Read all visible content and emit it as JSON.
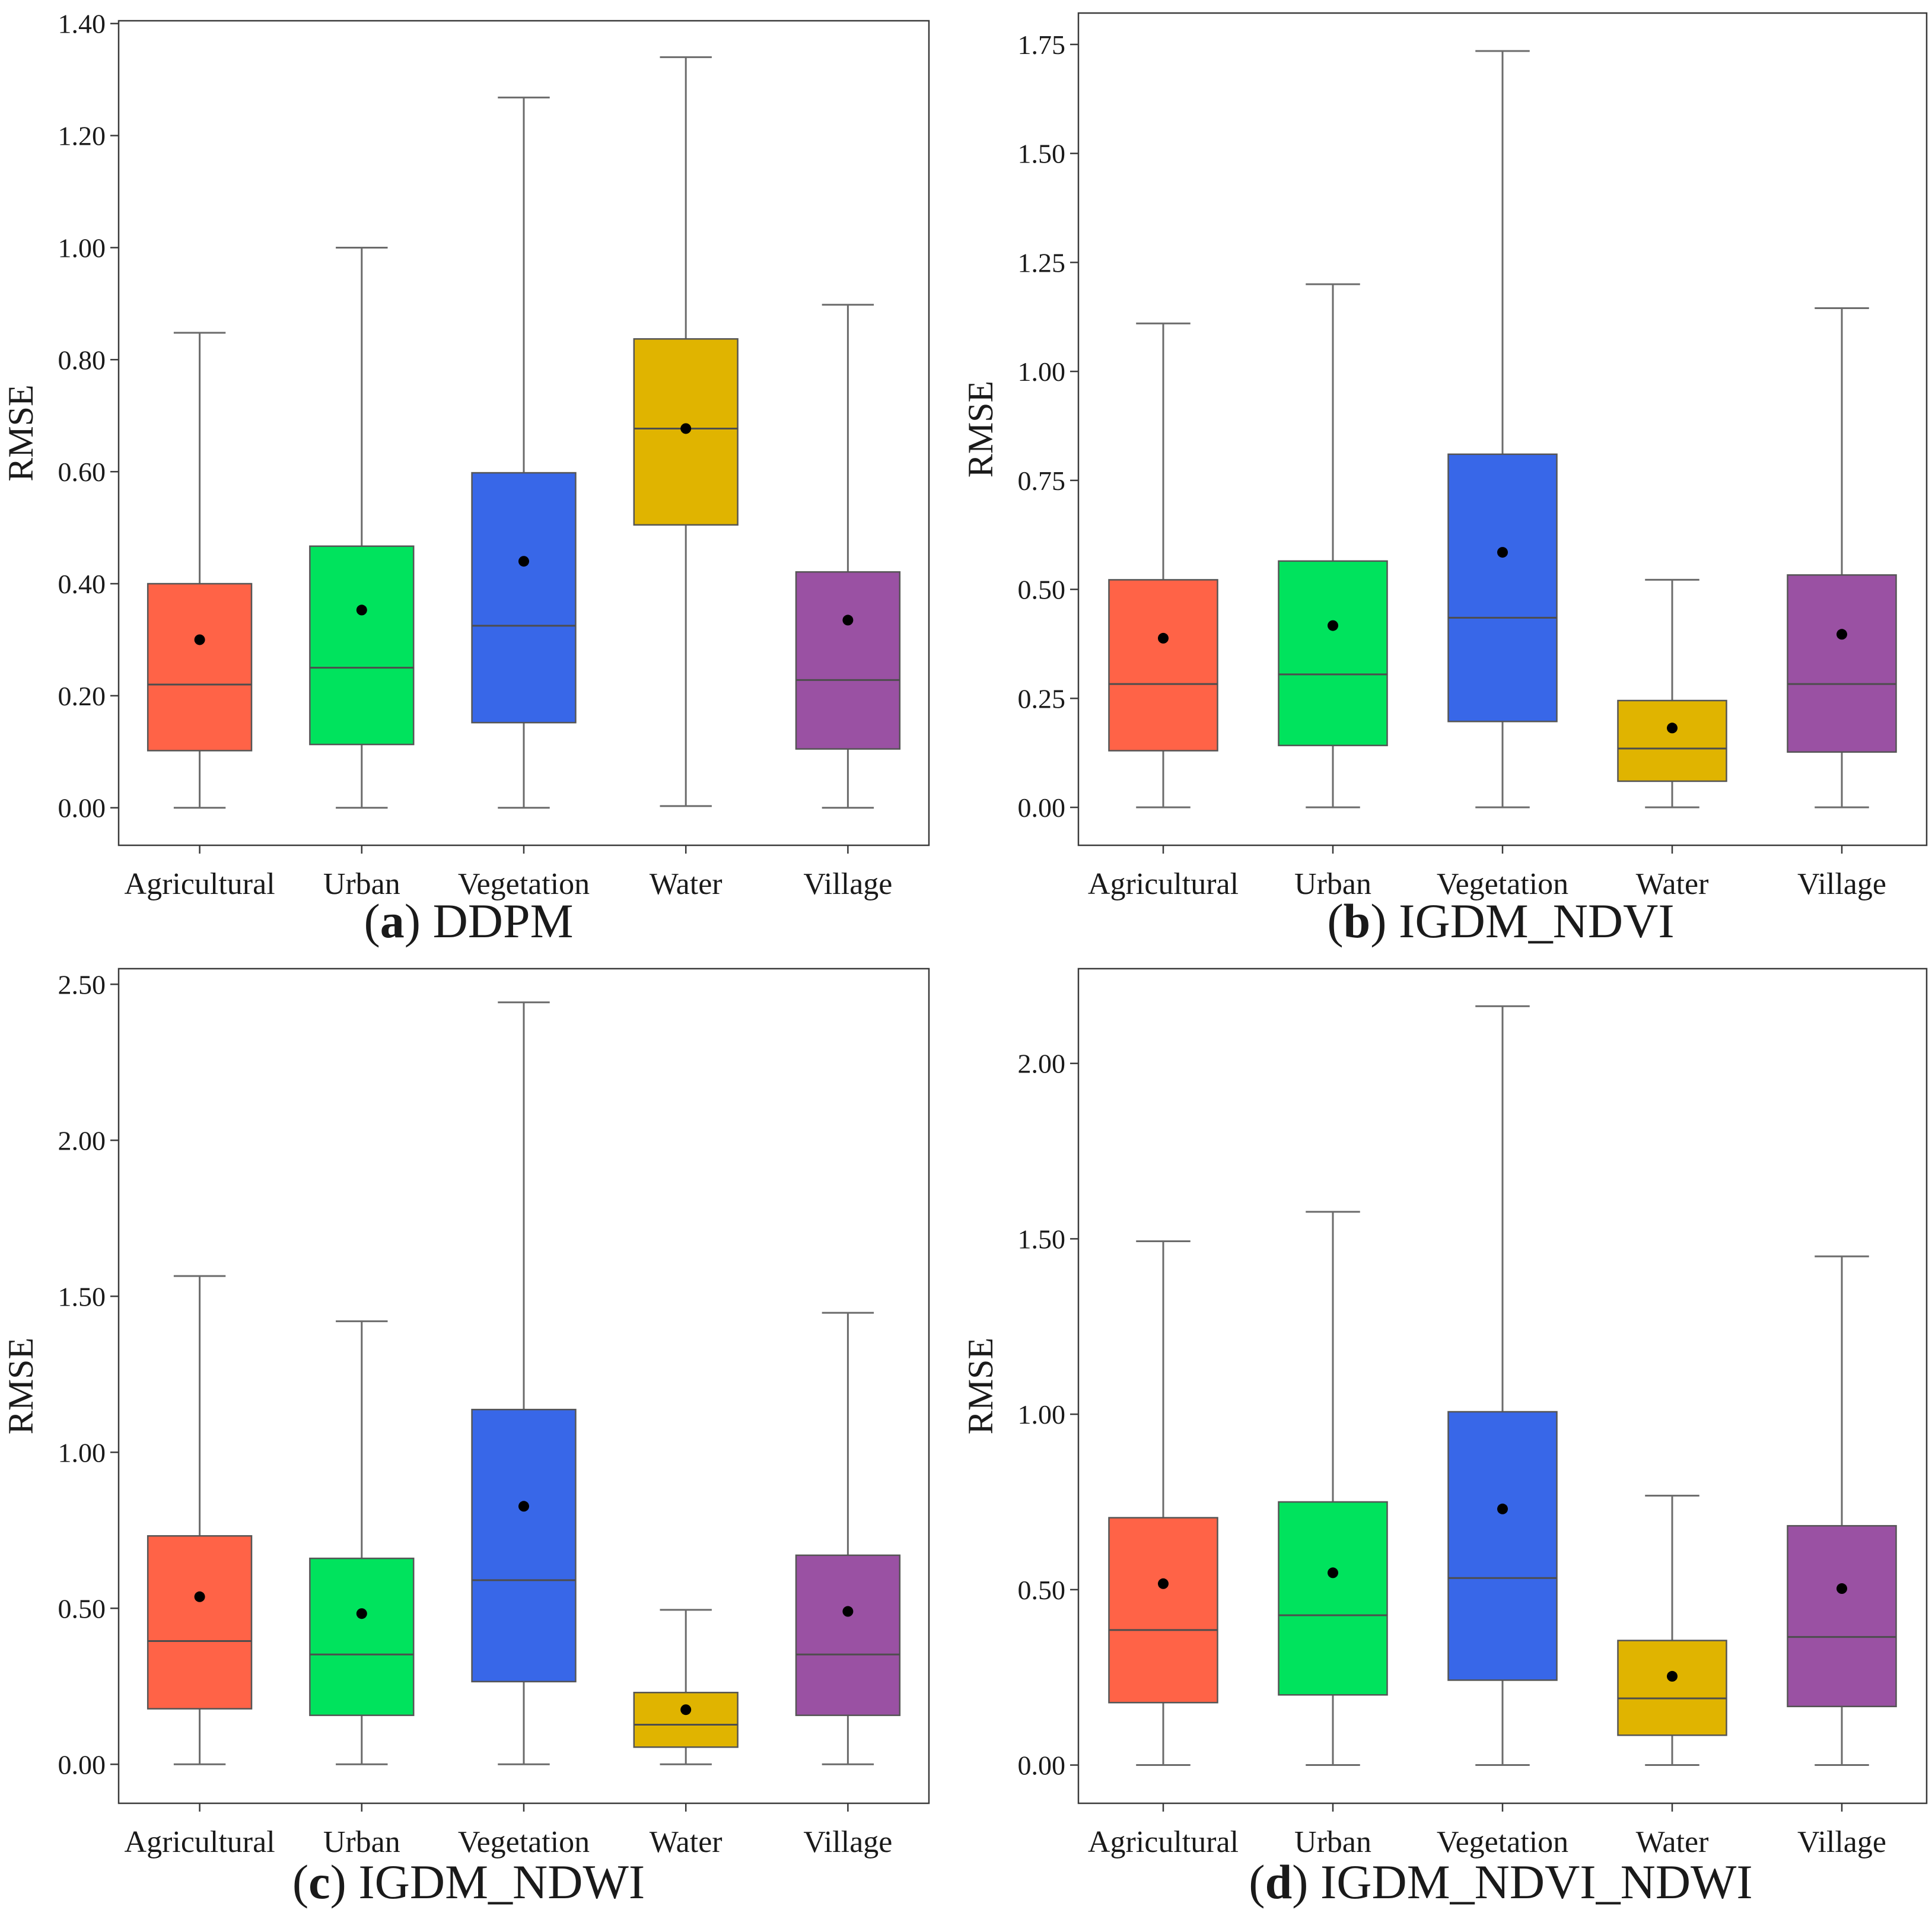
{
  "chart_data": [
    {
      "type": "box",
      "caption_letter": "a",
      "caption_text": "DDPM",
      "ylabel": "RMSE",
      "ylim": [
        -0.067,
        1.405
      ],
      "yticks": [
        "0.00",
        "0.20",
        "0.40",
        "0.60",
        "0.80",
        "1.00",
        "1.20",
        "1.40"
      ],
      "categories": [
        "Agricultural",
        "Urban",
        "Vegetation",
        "Water",
        "Village"
      ],
      "colors": [
        "#ff6347",
        "#00e35d",
        "#3867e8",
        "#e0b400",
        "#9a51a3"
      ],
      "boxes": [
        {
          "whislo": 0.0,
          "q1": 0.102,
          "med": 0.22,
          "q3": 0.4,
          "whishi": 0.848,
          "mean": 0.3
        },
        {
          "whislo": 0.0,
          "q1": 0.113,
          "med": 0.25,
          "q3": 0.467,
          "whishi": 1.0,
          "mean": 0.353
        },
        {
          "whislo": 0.0,
          "q1": 0.152,
          "med": 0.325,
          "q3": 0.598,
          "whishi": 1.268,
          "mean": 0.44
        },
        {
          "whislo": 0.003,
          "q1": 0.505,
          "med": 0.677,
          "q3": 0.837,
          "whishi": 1.34,
          "mean": 0.677
        },
        {
          "whislo": 0.0,
          "q1": 0.105,
          "med": 0.228,
          "q3": 0.421,
          "whishi": 0.898,
          "mean": 0.335
        }
      ]
    },
    {
      "type": "box",
      "caption_letter": "b",
      "caption_text": "IGDM_NDVI",
      "ylabel": "RMSE",
      "ylim": [
        -0.087,
        1.822
      ],
      "yticks": [
        "0.00",
        "0.25",
        "0.50",
        "0.75",
        "1.00",
        "1.25",
        "1.50",
        "1.75"
      ],
      "categories": [
        "Agricultural",
        "Urban",
        "Vegetation",
        "Water",
        "Village"
      ],
      "colors": [
        "#ff6347",
        "#00e35d",
        "#3867e8",
        "#e0b400",
        "#9a51a3"
      ],
      "boxes": [
        {
          "whislo": 0.0,
          "q1": 0.13,
          "med": 0.283,
          "q3": 0.522,
          "whishi": 1.11,
          "mean": 0.388
        },
        {
          "whislo": 0.0,
          "q1": 0.142,
          "med": 0.305,
          "q3": 0.565,
          "whishi": 1.2,
          "mean": 0.417
        },
        {
          "whislo": 0.0,
          "q1": 0.197,
          "med": 0.435,
          "q3": 0.81,
          "whishi": 1.735,
          "mean": 0.585
        },
        {
          "whislo": 0.0,
          "q1": 0.06,
          "med": 0.135,
          "q3": 0.245,
          "whishi": 0.522,
          "mean": 0.182
        },
        {
          "whislo": 0.0,
          "q1": 0.127,
          "med": 0.283,
          "q3": 0.533,
          "whishi": 1.145,
          "mean": 0.397
        }
      ]
    },
    {
      "type": "box",
      "caption_letter": "c",
      "caption_text": "IGDM_NDWI",
      "ylabel": "RMSE",
      "ylim": [
        -0.125,
        2.55
      ],
      "yticks": [
        "0.00",
        "0.50",
        "1.00",
        "1.50",
        "2.00",
        "2.50"
      ],
      "categories": [
        "Agricultural",
        "Urban",
        "Vegetation",
        "Water",
        "Village"
      ],
      "colors": [
        "#ff6347",
        "#00e35d",
        "#3867e8",
        "#e0b400",
        "#9a51a3"
      ],
      "boxes": [
        {
          "whislo": 0.0,
          "q1": 0.178,
          "med": 0.395,
          "q3": 0.732,
          "whishi": 1.565,
          "mean": 0.537
        },
        {
          "whislo": 0.0,
          "q1": 0.157,
          "med": 0.352,
          "q3": 0.66,
          "whishi": 1.42,
          "mean": 0.483
        },
        {
          "whislo": 0.0,
          "q1": 0.265,
          "med": 0.59,
          "q3": 1.137,
          "whishi": 2.442,
          "mean": 0.827
        },
        {
          "whislo": 0.0,
          "q1": 0.055,
          "med": 0.127,
          "q3": 0.23,
          "whishi": 0.495,
          "mean": 0.175
        },
        {
          "whislo": 0.0,
          "q1": 0.157,
          "med": 0.352,
          "q3": 0.67,
          "whishi": 1.447,
          "mean": 0.49
        }
      ]
    },
    {
      "type": "box",
      "caption_letter": "d",
      "caption_text": "IGDM_NDVI_NDWI",
      "ylabel": "RMSE",
      "ylim": [
        -0.109,
        2.27
      ],
      "yticks": [
        "0.00",
        "0.50",
        "1.00",
        "1.50",
        "2.00"
      ],
      "categories": [
        "Agricultural",
        "Urban",
        "Vegetation",
        "Water",
        "Village"
      ],
      "colors": [
        "#ff6347",
        "#00e35d",
        "#3867e8",
        "#e0b400",
        "#9a51a3"
      ],
      "boxes": [
        {
          "whislo": 0.0,
          "q1": 0.178,
          "med": 0.385,
          "q3": 0.705,
          "whishi": 1.493,
          "mean": 0.517
        },
        {
          "whislo": 0.0,
          "q1": 0.2,
          "med": 0.427,
          "q3": 0.75,
          "whishi": 1.577,
          "mean": 0.548
        },
        {
          "whislo": 0.0,
          "q1": 0.242,
          "med": 0.533,
          "q3": 1.007,
          "whishi": 2.163,
          "mean": 0.73
        },
        {
          "whislo": 0.0,
          "q1": 0.085,
          "med": 0.19,
          "q3": 0.355,
          "whishi": 0.768,
          "mean": 0.253
        },
        {
          "whislo": 0.0,
          "q1": 0.167,
          "med": 0.365,
          "q3": 0.682,
          "whishi": 1.45,
          "mean": 0.503
        }
      ]
    }
  ]
}
